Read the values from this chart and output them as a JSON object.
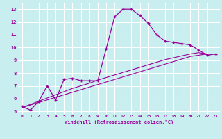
{
  "title": "",
  "xlabel": "Windchill (Refroidissement éolien,°C)",
  "ylabel": "",
  "bg_color": "#c8eef0",
  "grid_color": "#ffffff",
  "line_color": "#990099",
  "x": [
    0,
    1,
    2,
    3,
    4,
    5,
    6,
    7,
    8,
    9,
    10,
    11,
    12,
    13,
    14,
    15,
    16,
    17,
    18,
    19,
    20,
    21,
    22,
    23
  ],
  "y_main": [
    5.4,
    5.1,
    5.8,
    7.0,
    5.9,
    7.5,
    7.6,
    7.4,
    7.4,
    7.4,
    9.9,
    12.4,
    13.0,
    13.0,
    12.5,
    11.9,
    11.0,
    10.5,
    10.4,
    10.3,
    10.2,
    9.8,
    9.4,
    9.5
  ],
  "y_line1": [
    5.3,
    5.5,
    5.7,
    5.9,
    6.1,
    6.3,
    6.5,
    6.7,
    6.9,
    7.1,
    7.3,
    7.5,
    7.7,
    7.9,
    8.1,
    8.3,
    8.5,
    8.7,
    8.9,
    9.1,
    9.3,
    9.4,
    9.5,
    9.5
  ],
  "y_line2": [
    5.3,
    5.55,
    5.8,
    6.05,
    6.3,
    6.55,
    6.8,
    7.0,
    7.2,
    7.45,
    7.65,
    7.85,
    8.05,
    8.25,
    8.45,
    8.65,
    8.85,
    9.05,
    9.2,
    9.35,
    9.5,
    9.6,
    9.5,
    9.5
  ],
  "xlim": [
    -0.5,
    23.5
  ],
  "ylim": [
    4.8,
    13.5
  ],
  "yticks": [
    5,
    6,
    7,
    8,
    9,
    10,
    11,
    12,
    13
  ],
  "xticks": [
    0,
    1,
    2,
    3,
    4,
    5,
    6,
    7,
    8,
    9,
    10,
    11,
    12,
    13,
    14,
    15,
    16,
    17,
    18,
    19,
    20,
    21,
    22,
    23
  ]
}
